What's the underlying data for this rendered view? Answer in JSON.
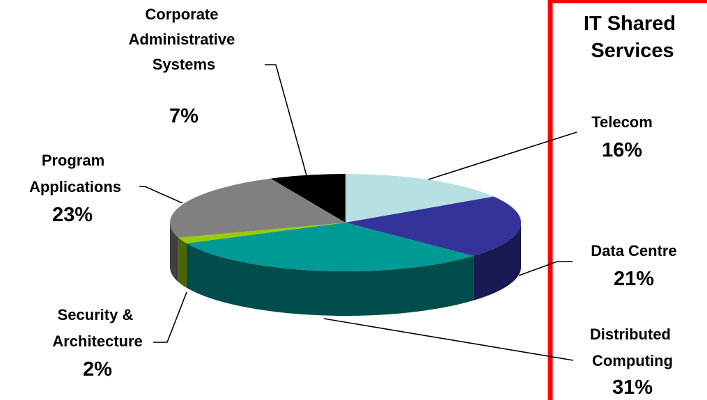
{
  "chart_data": {
    "type": "pie",
    "style": "3d-exploded-tilted",
    "panel_title": [
      "IT Shared",
      "Services"
    ],
    "slices": [
      {
        "id": "telecom",
        "label": [
          "Telecom"
        ],
        "pct_label": "16%",
        "value": 16,
        "color": "#b7e0e3",
        "side_color": "#8fb8bb"
      },
      {
        "id": "data-centre",
        "label": [
          "Data Centre"
        ],
        "pct_label": "21%",
        "value": 21,
        "color": "#33339a",
        "side_color": "#1a1a52"
      },
      {
        "id": "distributed-computing",
        "label": [
          "Distributed",
          "Computing"
        ],
        "pct_label": "31%",
        "value": 31,
        "color": "#009a96",
        "side_color": "#004d4b"
      },
      {
        "id": "security-architecture",
        "label": [
          "Security &",
          "Architecture"
        ],
        "pct_label": "2%",
        "value": 2,
        "color": "#99cc00",
        "side_color": "#4d6600"
      },
      {
        "id": "program-applications",
        "label": [
          "Program",
          "Applications"
        ],
        "pct_label": "23%",
        "value": 23,
        "color": "#808080",
        "side_color": "#404040"
      },
      {
        "id": "corporate-administrative-systems",
        "label": [
          "Corporate",
          "Administrative",
          "Systems"
        ],
        "pct_label": "7%",
        "value": 7,
        "color": "#000000",
        "side_color": "#000000"
      }
    ],
    "accent_color": "#ff0000"
  }
}
